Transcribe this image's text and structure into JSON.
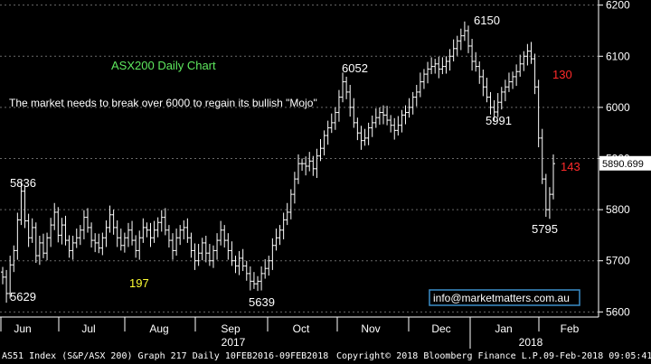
{
  "chart_data": {
    "type": "ohlc",
    "ylim": [
      5590,
      6210
    ],
    "y_ticks": [
      "5600",
      "5700",
      "5800",
      "5900",
      "6000",
      "6100",
      "6200"
    ],
    "last_price": "5890.699",
    "x_ticks": [
      "Jun",
      "Jul",
      "Aug",
      "Sep",
      "Oct",
      "Nov",
      "Dec",
      "Jan",
      "Feb"
    ],
    "year_labels": [
      "2017",
      "2018"
    ],
    "annotations": {
      "title": "ASX200 Daily Chart",
      "subtitle": "The market needs to break over 6000 to regain its bullish \"Mojo\"",
      "levels": [
        "5836",
        "5629",
        "197",
        "5639",
        "6052",
        "6150",
        "5991",
        "130",
        "5795",
        "143"
      ],
      "contact": "info@marketmatters.com.au"
    },
    "series_color": "#ffffff",
    "closes": [
      5668,
      5636,
      5692,
      5720,
      5780,
      5836,
      5778,
      5745,
      5765,
      5710,
      5735,
      5715,
      5745,
      5770,
      5795,
      5750,
      5770,
      5740,
      5720,
      5735,
      5745,
      5760,
      5785,
      5765,
      5740,
      5735,
      5725,
      5745,
      5765,
      5790,
      5765,
      5745,
      5730,
      5745,
      5760,
      5740,
      5720,
      5745,
      5765,
      5760,
      5745,
      5760,
      5775,
      5785,
      5760,
      5740,
      5720,
      5745,
      5760,
      5765,
      5745,
      5720,
      5700,
      5715,
      5735,
      5715,
      5700,
      5720,
      5740,
      5760,
      5740,
      5720,
      5700,
      5690,
      5705,
      5690,
      5675,
      5660,
      5655,
      5660,
      5675,
      5685,
      5700,
      5730,
      5745,
      5760,
      5780,
      5795,
      5830,
      5860,
      5890,
      5890,
      5885,
      5895,
      5880,
      5905,
      5920,
      5945,
      5960,
      5970,
      5990,
      6020,
      6050,
      6030,
      6000,
      5970,
      5950,
      5935,
      5940,
      5960,
      5970,
      5980,
      5990,
      5985,
      5975,
      5965,
      5955,
      5965,
      5985,
      5990,
      6000,
      6020,
      6030,
      6050,
      6065,
      6075,
      6080,
      6085,
      6075,
      6080,
      6090,
      6100,
      6115,
      6130,
      6140,
      6150,
      6120,
      6090,
      6080,
      6060,
      6040,
      6020,
      6000,
      5991,
      6010,
      6030,
      6040,
      6050,
      6060,
      6070,
      6085,
      6100,
      6110,
      6095,
      6040,
      5940,
      5860,
      5800,
      5830,
      5890
    ]
  },
  "footer": {
    "left": "AS51 Index (S&P/ASX 200) Graph 217  Daily 10FEB2016-09FEB2018",
    "center": "Copyright© 2018 Bloomberg Finance L.P.",
    "right": "09-Feb-2018 09:05:41"
  },
  "colors": {
    "background": "#000000",
    "axis": "#ffffff",
    "grid": "#6a6a6a",
    "title": "#5ee85e",
    "highlight_yellow": "#ffff33",
    "red": "#ff2a2a",
    "contact_border": "#3a8ec8"
  }
}
